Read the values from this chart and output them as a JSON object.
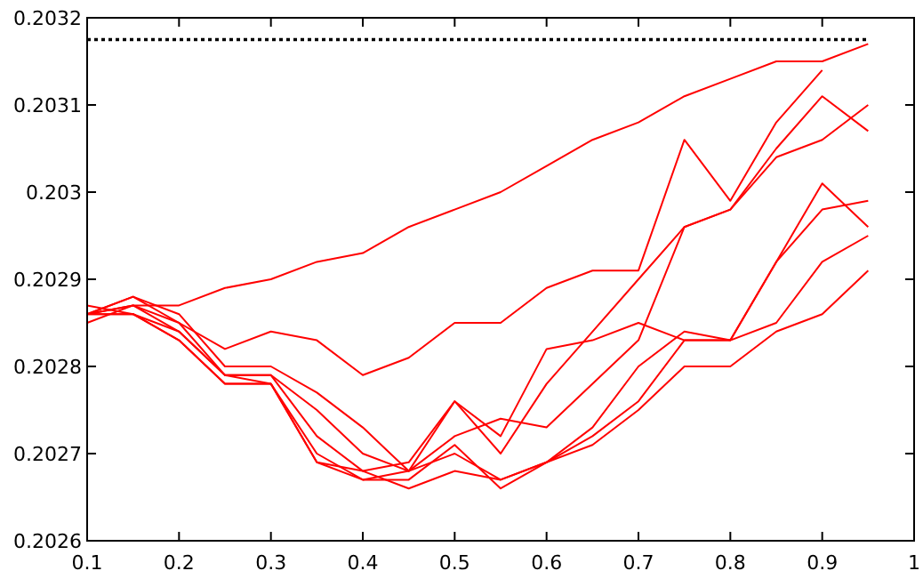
{
  "chart_data": {
    "type": "line",
    "x": [
      0.1,
      0.15,
      0.2,
      0.25,
      0.3,
      0.35,
      0.4,
      0.45,
      0.5,
      0.55,
      0.6,
      0.65,
      0.7,
      0.75,
      0.8,
      0.85,
      0.9,
      0.95
    ],
    "xlim": [
      0.1,
      1
    ],
    "xticks": [
      0.1,
      0.2,
      0.3,
      0.4,
      0.5,
      0.6,
      0.7,
      0.8,
      0.9,
      1
    ],
    "ylim": [
      0.2026,
      0.2032
    ],
    "yticks": [
      0.2026,
      0.2027,
      0.2028,
      0.2029,
      0.203,
      0.2031,
      0.2032
    ],
    "grid": false,
    "marker": "none",
    "line_style": "solid",
    "series": [
      {
        "color": "#000000",
        "line_style": "dotted",
        "values": [
          0.203175,
          0.203175,
          0.203175,
          0.203175,
          0.203175,
          0.203175,
          0.203175,
          0.203175,
          0.203175,
          0.203175,
          0.203175,
          0.203175,
          0.203175,
          0.203175,
          0.203175,
          0.203175,
          0.203175,
          0.203175
        ]
      },
      {
        "color": "#ff0000",
        "values": [
          0.20286,
          0.20287,
          0.20287,
          0.20289,
          0.2029,
          0.20292,
          0.20293,
          0.20296,
          0.20298,
          0.203,
          0.20303,
          0.20306,
          0.20308,
          0.20311,
          0.20313,
          0.20315,
          0.20315,
          0.20317
        ]
      },
      {
        "color": "#ff0000",
        "values": [
          0.20286,
          0.20288,
          0.20285,
          0.20282,
          0.20284,
          0.20283,
          0.20279,
          0.20281,
          0.20285,
          0.20285,
          0.20289,
          0.20291,
          0.20291,
          0.20306,
          0.20299,
          0.20308,
          0.20314,
          null
        ]
      },
      {
        "color": "#ff0000",
        "values": [
          0.20286,
          0.20288,
          0.20286,
          0.2028,
          0.2028,
          0.20277,
          0.20273,
          0.20268,
          0.20276,
          0.2027,
          0.20278,
          0.20284,
          0.2029,
          0.20296,
          0.20298,
          0.20305,
          0.20311,
          0.20307
        ]
      },
      {
        "color": "#ff0000",
        "values": [
          0.20285,
          0.20287,
          0.20285,
          0.20279,
          0.20279,
          0.20275,
          0.2027,
          0.20268,
          0.20272,
          0.20274,
          0.20273,
          0.20278,
          0.20283,
          0.20296,
          0.20298,
          0.20304,
          0.20306,
          0.2031
        ]
      },
      {
        "color": "#ff0000",
        "values": [
          0.20286,
          0.20287,
          0.20284,
          0.20279,
          0.20279,
          0.20272,
          0.20268,
          0.20269,
          0.20276,
          0.20272,
          0.20282,
          0.20283,
          0.20285,
          0.20283,
          0.20283,
          0.20292,
          0.20301,
          0.20296
        ]
      },
      {
        "color": "#ff0000",
        "values": [
          0.20286,
          0.20286,
          0.20284,
          0.20279,
          0.20278,
          0.2027,
          0.20267,
          0.20267,
          0.20271,
          0.20266,
          0.20269,
          0.20273,
          0.2028,
          0.20284,
          0.20283,
          0.20292,
          0.20298,
          0.20299
        ]
      },
      {
        "color": "#ff0000",
        "values": [
          0.20287,
          0.20286,
          0.20283,
          0.20278,
          0.20278,
          0.20269,
          0.20267,
          0.20268,
          0.2027,
          0.20267,
          0.20269,
          0.20272,
          0.20276,
          0.20283,
          0.20283,
          0.20285,
          0.20292,
          0.20295
        ]
      },
      {
        "color": "#ff0000",
        "values": [
          0.20286,
          0.20286,
          0.20283,
          0.20278,
          0.20278,
          0.20269,
          0.20268,
          0.20266,
          0.20268,
          0.20267,
          0.20269,
          0.20271,
          0.20275,
          0.2028,
          0.2028,
          0.20284,
          0.20286,
          0.20291
        ]
      }
    ]
  }
}
